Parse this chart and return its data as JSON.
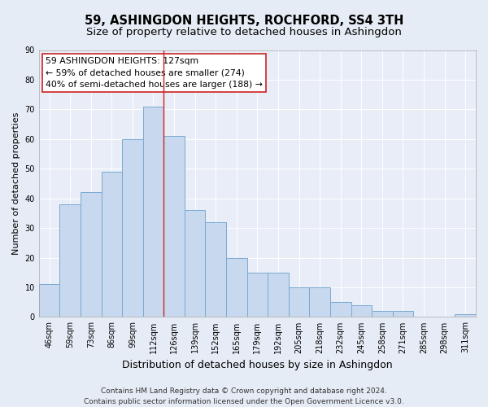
{
  "title": "59, ASHINGDON HEIGHTS, ROCHFORD, SS4 3TH",
  "subtitle": "Size of property relative to detached houses in Ashingdon",
  "xlabel": "Distribution of detached houses by size in Ashingdon",
  "ylabel": "Number of detached properties",
  "categories": [
    "46sqm",
    "59sqm",
    "73sqm",
    "86sqm",
    "99sqm",
    "112sqm",
    "126sqm",
    "139sqm",
    "152sqm",
    "165sqm",
    "179sqm",
    "192sqm",
    "205sqm",
    "218sqm",
    "232sqm",
    "245sqm",
    "258sqm",
    "271sqm",
    "285sqm",
    "298sqm",
    "311sqm"
  ],
  "values": [
    11,
    38,
    42,
    49,
    60,
    71,
    61,
    36,
    32,
    20,
    15,
    15,
    10,
    10,
    5,
    4,
    2,
    2,
    0,
    0,
    1
  ],
  "bar_color": "#c8d8ee",
  "bar_edge_color": "#7aaad0",
  "annotation_line1": "59 ASHINGDON HEIGHTS: 127sqm",
  "annotation_line2": "← 59% of detached houses are smaller (274)",
  "annotation_line3": "40% of semi-detached houses are larger (188) →",
  "vline_color": "#cc2222",
  "annotation_box_edge_color": "#cc2222",
  "annotation_box_bg": "#ffffff",
  "ylim": [
    0,
    90
  ],
  "yticks": [
    0,
    10,
    20,
    30,
    40,
    50,
    60,
    70,
    80,
    90
  ],
  "vline_x": 5.5,
  "footer_line1": "Contains HM Land Registry data © Crown copyright and database right 2024.",
  "footer_line2": "Contains public sector information licensed under the Open Government Licence v3.0.",
  "bg_color": "#e6ecf5",
  "plot_bg_color": "#e8edf8",
  "grid_color": "#ffffff",
  "title_fontsize": 10.5,
  "subtitle_fontsize": 9.5,
  "xlabel_fontsize": 9,
  "ylabel_fontsize": 8,
  "tick_fontsize": 7,
  "annotation_fontsize": 7.8,
  "footer_fontsize": 6.5
}
